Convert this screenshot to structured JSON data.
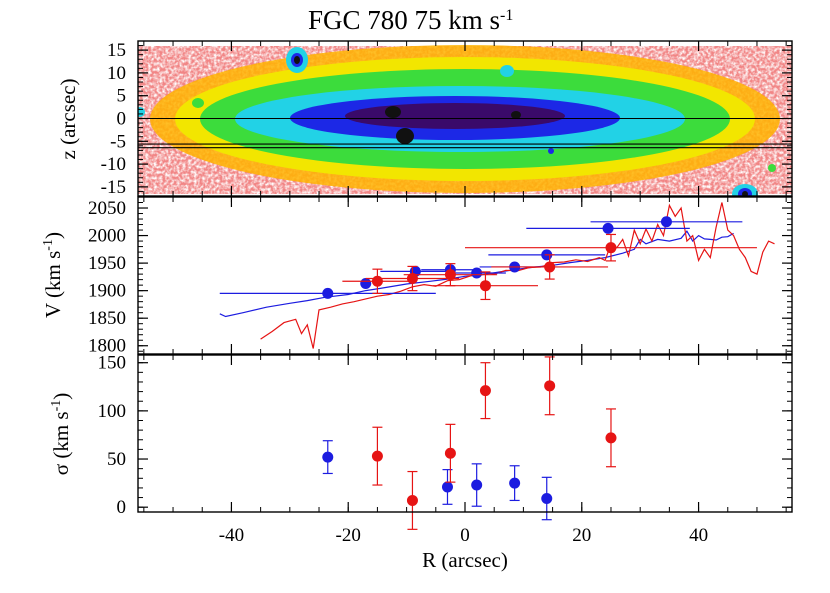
{
  "title_main": "FGC 780 75 km s",
  "title_sup": "-1",
  "chart_data": [
    {
      "type": "heatmap",
      "panel": "image",
      "ylabel": "z (arcsec)",
      "xlim": [
        -56,
        56
      ],
      "ylim": [
        -17,
        17
      ],
      "yticks": [
        15,
        10,
        5,
        0,
        -5,
        -10,
        -15
      ],
      "horizontal_lines_z": [
        0,
        -5.6,
        -6.4
      ],
      "colors": {
        "core": "#3a0a6a",
        "mid": "#1c28e6",
        "outer": "#22d2e6",
        "halo": "#3cdc3c",
        "edge": "#ffb400",
        "noise": "#e62020"
      }
    },
    {
      "type": "line",
      "panel": "velocity",
      "ylabel": "V (km s",
      "ylabel_sup": "-1",
      "ylabel_end": ")",
      "xlim": [
        -56,
        56
      ],
      "ylim": [
        1785,
        2070
      ],
      "yticks": [
        2050,
        2000,
        1950,
        1900,
        1850,
        1800
      ],
      "colors": {
        "blue": "#1c1ce0",
        "red": "#e61414"
      },
      "blue_points": [
        {
          "x": -23.5,
          "y": 1895,
          "xerr": 18.5
        },
        {
          "x": -17,
          "y": 1913,
          "xerr": 0
        },
        {
          "x": -8.5,
          "y": 1935,
          "xerr": 6
        },
        {
          "x": -2.5,
          "y": 1938,
          "xerr": 5
        },
        {
          "x": 2,
          "y": 1932,
          "xerr": 5
        },
        {
          "x": 8.5,
          "y": 1943,
          "xerr": 6
        },
        {
          "x": 14,
          "y": 1965,
          "xerr": 10
        },
        {
          "x": 24.5,
          "y": 2013,
          "xerr": 14
        },
        {
          "x": 34.5,
          "y": 2025,
          "xerr": 13
        }
      ],
      "red_points": [
        {
          "x": -15,
          "y": 1917,
          "xerr": 6,
          "yerr": 22
        },
        {
          "x": -9,
          "y": 1922,
          "xerr": 8,
          "yerr": 22
        },
        {
          "x": -2.5,
          "y": 1929,
          "xerr": 8,
          "yerr": 20
        },
        {
          "x": 3.5,
          "y": 1909,
          "xerr": 9,
          "yerr": 25
        },
        {
          "x": 14.5,
          "y": 1943,
          "xerr": 10,
          "yerr": 22
        },
        {
          "x": 25,
          "y": 1978,
          "xerr": 25,
          "yerr": 24
        }
      ],
      "blue_curve": [
        [
          -42,
          1858
        ],
        [
          -41,
          1853
        ],
        [
          -38,
          1860
        ],
        [
          -34,
          1870
        ],
        [
          -30,
          1877
        ],
        [
          -27,
          1882
        ],
        [
          -24,
          1888
        ],
        [
          -20,
          1893
        ],
        [
          -17,
          1900
        ],
        [
          -14,
          1905
        ],
        [
          -10,
          1912
        ],
        [
          -6,
          1917
        ],
        [
          -3,
          1921
        ],
        [
          0,
          1926
        ],
        [
          3,
          1929
        ],
        [
          6,
          1934
        ],
        [
          9,
          1939
        ],
        [
          12,
          1943
        ],
        [
          15,
          1946
        ],
        [
          18,
          1951
        ],
        [
          21,
          1955
        ],
        [
          24,
          1960
        ],
        [
          27,
          1968
        ],
        [
          29,
          1975
        ],
        [
          30,
          1993
        ],
        [
          31,
          1985
        ],
        [
          33,
          1993
        ],
        [
          35,
          1990
        ],
        [
          37,
          1995
        ],
        [
          38,
          2008
        ],
        [
          39,
          1990
        ],
        [
          40,
          2000
        ],
        [
          41,
          1994
        ],
        [
          42,
          1993
        ],
        [
          43,
          1992
        ],
        [
          44,
          1997
        ],
        [
          45,
          1998
        ],
        [
          46,
          2004
        ]
      ],
      "red_curve": [
        [
          -35,
          1812
        ],
        [
          -33,
          1826
        ],
        [
          -31,
          1842
        ],
        [
          -29,
          1848
        ],
        [
          -28,
          1822
        ],
        [
          -27,
          1838
        ],
        [
          -26,
          1795
        ],
        [
          -25,
          1865
        ],
        [
          -23,
          1870
        ],
        [
          -21,
          1876
        ],
        [
          -19,
          1880
        ],
        [
          -17,
          1885
        ],
        [
          -15,
          1890
        ],
        [
          -13,
          1893
        ],
        [
          -11,
          1899
        ],
        [
          -9,
          1907
        ],
        [
          -7,
          1911
        ],
        [
          -5,
          1908
        ],
        [
          -3,
          1918
        ],
        [
          -1,
          1920
        ],
        [
          1,
          1927
        ],
        [
          3,
          1933
        ],
        [
          5,
          1930
        ],
        [
          7,
          1937
        ],
        [
          9,
          1936
        ],
        [
          11,
          1942
        ],
        [
          13,
          1943
        ],
        [
          15,
          1951
        ],
        [
          17,
          1952
        ],
        [
          19,
          1956
        ],
        [
          21,
          1953
        ],
        [
          23,
          1960
        ],
        [
          24,
          1955
        ],
        [
          25,
          1985
        ],
        [
          26,
          1978
        ],
        [
          27,
          1993
        ],
        [
          28,
          1963
        ],
        [
          29,
          2010
        ],
        [
          30,
          1985
        ],
        [
          31,
          2012
        ],
        [
          32,
          1990
        ],
        [
          33,
          2020
        ],
        [
          34,
          2000
        ],
        [
          35,
          2055
        ],
        [
          36,
          2035
        ],
        [
          37,
          2050
        ],
        [
          38,
          1990
        ],
        [
          39,
          2000
        ],
        [
          40,
          1955
        ],
        [
          41,
          1975
        ],
        [
          42,
          1960
        ],
        [
          43,
          2015
        ],
        [
          44,
          2060
        ],
        [
          45,
          2010
        ],
        [
          46,
          2000
        ],
        [
          47,
          1975
        ],
        [
          48,
          1960
        ],
        [
          49,
          1935
        ],
        [
          50,
          1930
        ],
        [
          51,
          1970
        ],
        [
          52,
          1990
        ],
        [
          53,
          1985
        ]
      ]
    },
    {
      "type": "scatter",
      "panel": "dispersion",
      "ylabel": "σ (km s",
      "ylabel_sup": "-1",
      "ylabel_end": ")",
      "xlabel": "R (arcsec)",
      "xlim": [
        -56,
        56
      ],
      "ylim": [
        -5,
        158
      ],
      "xticks": [
        -40,
        -20,
        0,
        20,
        40
      ],
      "yticks": [
        150,
        100,
        50,
        0
      ],
      "colors": {
        "blue": "#1c1ce0",
        "red": "#e61414"
      },
      "blue_points": [
        {
          "x": -23.5,
          "y": 52,
          "yerr": 17
        },
        {
          "x": -3,
          "y": 21,
          "yerr": 18
        },
        {
          "x": 2,
          "y": 23,
          "yerr": 22
        },
        {
          "x": 8.5,
          "y": 25,
          "yerr": 18
        },
        {
          "x": 14,
          "y": 9,
          "yerr": 22
        }
      ],
      "red_points": [
        {
          "x": -15,
          "y": 53,
          "yerr": 30
        },
        {
          "x": -9,
          "y": 7,
          "yerr": 30
        },
        {
          "x": -2.5,
          "y": 56,
          "yerr": 30
        },
        {
          "x": 3.5,
          "y": 121,
          "yerr": 29
        },
        {
          "x": 14.5,
          "y": 126,
          "yerr": 30
        },
        {
          "x": 25,
          "y": 72,
          "yerr": 30
        }
      ]
    }
  ]
}
